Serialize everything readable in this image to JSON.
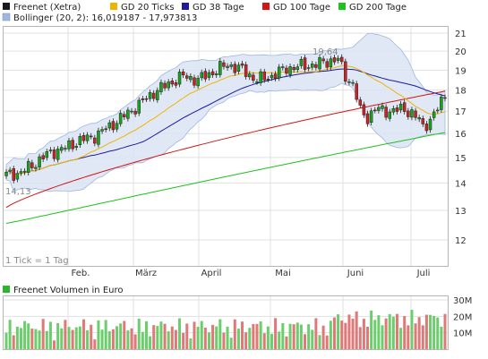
{
  "chart_data": [
    {
      "type": "candlestick",
      "title": "",
      "legend": {
        "position": "top",
        "entries": [
          {
            "label": "Freenet (Xetra)",
            "color": "#1a1a1a"
          },
          {
            "label": "GD 20 Ticks",
            "color": "#f0b400"
          },
          {
            "label": "GD 38 Tage",
            "color": "#1c1c9c"
          },
          {
            "label": "GD 100 Tage",
            "color": "#d21414"
          },
          {
            "label": "GD 200 Tage",
            "color": "#1fc01f"
          },
          {
            "label": "Bollinger (20, 2): 16,019187 - 17,973813",
            "color": "#9fb7dd"
          }
        ]
      },
      "x_labels": [
        "Feb.",
        "März",
        "April",
        "Mai",
        "Juni",
        "Juli"
      ],
      "y_ticks": [
        12,
        13,
        14,
        15,
        16,
        17,
        18,
        19,
        20,
        21
      ],
      "y_scale": "log",
      "ylim": [
        11.4,
        21.4
      ],
      "grid": true,
      "annotations": [
        "19,64",
        "14,13",
        "1 Tick = 1 Tag"
      ],
      "price_high": 19.64,
      "price_low": 14.13,
      "bollinger_last": {
        "lower": 16.019187,
        "upper": 17.973813
      },
      "sma": {
        "gd20_end": 17.05,
        "gd38_end": 17.3,
        "gd100_end": 17.95,
        "gd200_end": 16.05
      },
      "colors": {
        "up_candle": "#19a519",
        "down_candle": "#cc2222",
        "bollinger_fill": "#dbe4f5",
        "bollinger_edge": "#9fb7dd"
      }
    },
    {
      "type": "bar",
      "title": "Freenet Volumen in Euro",
      "legend_color": "#2db42d",
      "y_ticks": [
        "10M",
        "20M",
        "30M"
      ],
      "ylim": [
        0,
        30
      ],
      "unit": "M",
      "grid": true,
      "colors": {
        "up": "#6ccd6c",
        "down": "#e07878"
      }
    }
  ]
}
